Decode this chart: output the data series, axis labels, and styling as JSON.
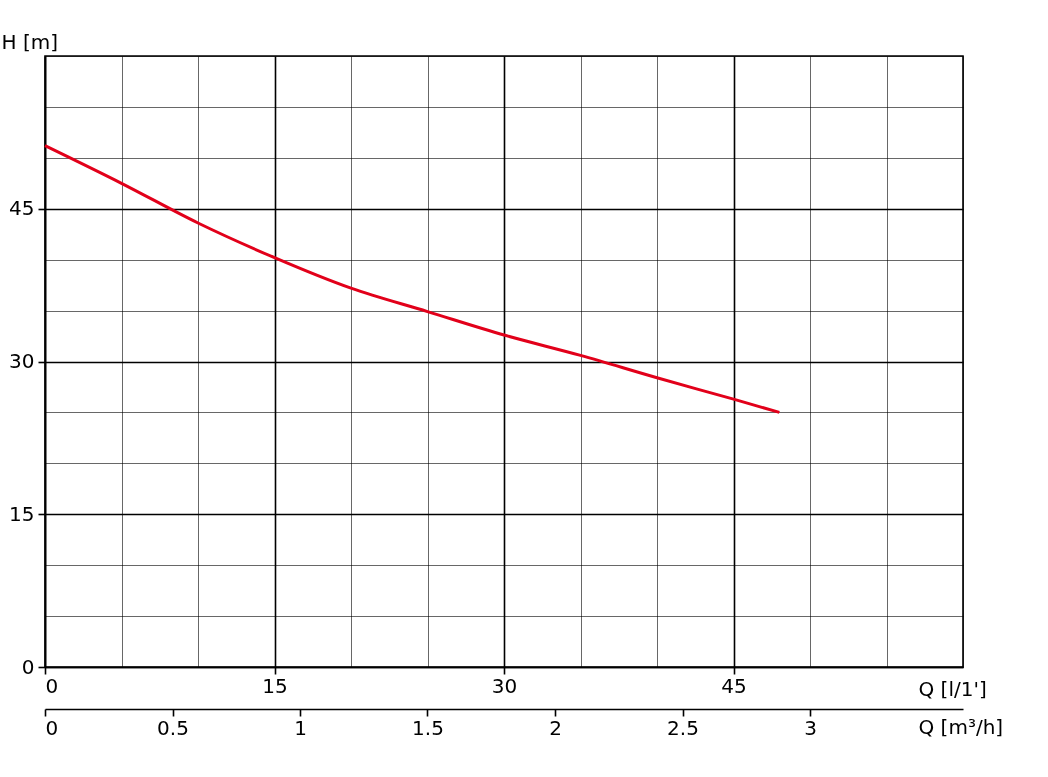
{
  "chart_data": {
    "type": "line",
    "xlabel": "Q [l/1']",
    "ylabel": "H [m]",
    "x2label": "Q [m³/h]",
    "x": [
      0,
      5,
      10,
      15,
      20,
      25,
      30,
      35,
      40,
      45,
      48
    ],
    "series": [
      {
        "color": "#e2001a",
        "values": [
          51.2,
          47.5,
          43.6,
          40.2,
          37.2,
          34.9,
          32.6,
          30.6,
          28.4,
          26.3,
          25.0
        ]
      }
    ],
    "xlim": [
      0,
      60
    ],
    "xticks": [
      0,
      {
        "value": 5,
        "label": null
      },
      {
        "value": 10,
        "label": null
      },
      15,
      {
        "value": 20,
        "label": null
      },
      {
        "value": 25,
        "label": null
      },
      30,
      {
        "value": 35,
        "label": null
      },
      {
        "value": 40,
        "label": null
      },
      45,
      {
        "value": 50,
        "label": null
      },
      {
        "value": 55,
        "label": null
      },
      {
        "value": 60,
        "label": null
      }
    ],
    "ylim": [
      0,
      60
    ],
    "yticks": [
      0,
      {
        "value": 5,
        "label": null
      },
      {
        "value": 10,
        "label": null
      },
      15,
      {
        "value": 20,
        "label": null
      },
      {
        "value": 25,
        "label": null
      },
      30,
      {
        "value": 35,
        "label": null
      },
      {
        "value": 40,
        "label": null
      },
      45,
      {
        "value": 50,
        "label": null
      },
      {
        "value": 55,
        "label": null
      },
      {
        "value": 60,
        "label": null
      }
    ],
    "x2lim": [
      0,
      3.6
    ],
    "x2ticks": [
      0,
      0.5,
      1,
      1.5,
      2,
      2.5,
      3
    ],
    "grid": true,
    "marker": "none",
    "line_style": "solid"
  }
}
